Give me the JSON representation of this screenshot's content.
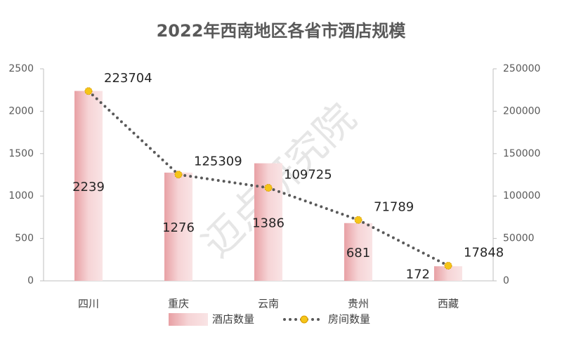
{
  "chart_data": {
    "type": "bar",
    "title": "2022年西南地区各省市酒店规模",
    "watermark": "迈点研究院",
    "categories": [
      "四川",
      "重庆",
      "云南",
      "贵州",
      "西藏"
    ],
    "series": [
      {
        "name": "酒店数量",
        "type": "bar",
        "color": "#e8a0a4",
        "values": [
          2239,
          1276,
          1386,
          681,
          172
        ]
      },
      {
        "name": "房间数量",
        "type": "line",
        "axis": "y2",
        "color": "#595959",
        "marker_color": "#f5c518",
        "values": [
          223704,
          125309,
          109725,
          71789,
          17848
        ]
      }
    ],
    "ylim": [
      0,
      2500
    ],
    "yticks": [
      0,
      500,
      1000,
      1500,
      2000,
      2500
    ],
    "y2lim": [
      0,
      250000
    ],
    "y2ticks": [
      0,
      50000,
      100000,
      150000,
      200000,
      250000
    ],
    "grid": false,
    "legend": "bottom"
  }
}
